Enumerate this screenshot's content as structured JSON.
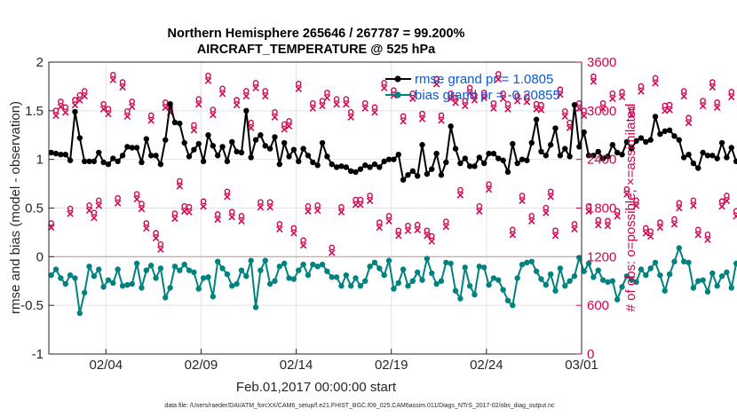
{
  "colors": {
    "rmse": "#000000",
    "bias": "#00827f",
    "obs": "#d4004f",
    "grid": "#e3e3e3",
    "zero": "#c8a0a0",
    "legend_text": "#0a59d6",
    "axis": "#262626"
  },
  "chart_data": {
    "type": "line",
    "title": [
      "Northern Hemisphere 265646 / 267787 = 99.200%",
      "AIRCRAFT_TEMPERATURE @ 525 hPa"
    ],
    "xlabel": "Feb.01,2017 00:00:00 start",
    "ylabel_left": "rmse and bias (model - observation)",
    "ylabel_right": "# of obs: o=possible; ×=assimilated",
    "x_range_days": [
      0,
      28
    ],
    "x_ticks": [
      {
        "day": 3,
        "label": "02/04"
      },
      {
        "day": 8,
        "label": "02/09"
      },
      {
        "day": 13,
        "label": "02/14"
      },
      {
        "day": 18,
        "label": "02/19"
      },
      {
        "day": 23,
        "label": "02/24"
      },
      {
        "day": 28,
        "label": "03/01"
      }
    ],
    "ylim_left": [
      -1,
      2
    ],
    "y_ticks_left": [
      {
        "v": 2,
        "label": "2"
      },
      {
        "v": 1.5,
        "label": "1.5"
      },
      {
        "v": 1,
        "label": "1"
      },
      {
        "v": 0.5,
        "label": "0.5"
      },
      {
        "v": 0,
        "label": "0"
      },
      {
        "v": -0.5,
        "label": "-0.5"
      },
      {
        "v": -1,
        "label": "-1"
      }
    ],
    "ylim_right": [
      0,
      3600
    ],
    "y_ticks_right": [
      {
        "v": 3600,
        "label": "3600"
      },
      {
        "v": 3000,
        "label": "3000"
      },
      {
        "v": 2400,
        "label": "2400"
      },
      {
        "v": 1800,
        "label": "1800"
      },
      {
        "v": 1200,
        "label": "1200"
      },
      {
        "v": 600,
        "label": "600"
      },
      {
        "v": 0,
        "label": "0"
      }
    ],
    "legend": [
      {
        "name": "rmse",
        "label": "rmse grand pr = 1.0805"
      },
      {
        "name": "bias",
        "label": "bias grand pr = -0.20855"
      }
    ],
    "time_step_days": 0.25,
    "series": [
      {
        "name": "rmse",
        "axis": "left",
        "values": [
          1.07,
          1.06,
          1.05,
          1.05,
          0.99,
          1.49,
          1.22,
          0.98,
          0.98,
          0.98,
          1.07,
          0.97,
          0.95,
          1.01,
          0.98,
          1.04,
          1.13,
          1.12,
          1.12,
          0.97,
          1.21,
          1.04,
          1.04,
          0.95,
          1.2,
          1.57,
          1.38,
          1.37,
          1.17,
          1.03,
          1.1,
          1.16,
          0.98,
          1.25,
          1.14,
          1.04,
          1.13,
          0.98,
          1.18,
          1.08,
          1.07,
          1.5,
          1.02,
          1.2,
          1.25,
          1.14,
          1.11,
          1.23,
          0.95,
          1.17,
          1.03,
          1.1,
          0.98,
          1.11,
          1.04,
          0.97,
          0.94,
          1.17,
          1.03,
          0.95,
          0.92,
          0.93,
          0.92,
          0.88,
          0.87,
          0.9,
          0.94,
          0.92,
          0.95,
          0.92,
          0.98,
          1.0,
          1.0,
          1.05,
          0.79,
          0.84,
          0.88,
          0.83,
          1.15,
          0.85,
          0.9,
          1.06,
          0.84,
          0.97,
          1.34,
          1.11,
          0.96,
          1.01,
          0.93,
          0.93,
          1.02,
          0.96,
          1.06,
          1.06,
          1.01,
          0.99,
          0.87,
          1.16,
          0.96,
          1.0,
          0.99,
          1.17,
          1.41,
          1.08,
          1.04,
          1.15,
          1.32,
          1.04,
          1.11,
          1.03,
          1.56,
          1.13,
          1.28,
          1.04,
          1.04,
          1.08,
          1.01,
          1.03,
          1.15,
          1.07,
          1.05,
          1.18,
          1.11,
          1.19,
          1.22,
          1.18,
          1.2,
          1.44,
          1.26,
          1.29,
          1.3,
          1.24,
          1.2,
          1.02,
          1.05,
          0.96,
          0.91,
          1.07,
          1.04,
          1.04,
          1.01,
          1.17,
          1.02,
          1.12,
          0.98,
          1.03,
          1.09,
          1.0,
          1.12,
          1.09,
          1.09,
          1.1,
          1.14,
          1.08,
          1.13,
          1.15,
          1.15,
          1.1
        ]
      },
      {
        "name": "bias",
        "axis": "left",
        "values": [
          -0.19,
          -0.13,
          -0.22,
          -0.28,
          -0.19,
          -0.22,
          -0.58,
          -0.37,
          -0.1,
          -0.2,
          -0.13,
          -0.31,
          -0.24,
          -0.27,
          -0.13,
          -0.3,
          -0.29,
          -0.28,
          -0.07,
          -0.32,
          -0.14,
          -0.09,
          -0.22,
          -0.12,
          -0.42,
          -0.32,
          -0.1,
          -0.14,
          -0.08,
          -0.14,
          -0.16,
          -0.33,
          -0.22,
          -0.21,
          -0.41,
          -0.05,
          -0.12,
          -0.18,
          -0.3,
          -0.28,
          -0.14,
          -0.2,
          -0.04,
          -0.52,
          -0.14,
          -0.04,
          -0.28,
          -0.25,
          -0.1,
          -0.07,
          -0.22,
          -0.23,
          -0.14,
          -0.08,
          -0.19,
          -0.08,
          -0.1,
          -0.08,
          -0.15,
          -0.21,
          -0.21,
          -0.3,
          -0.19,
          -0.3,
          -0.22,
          -0.3,
          -0.25,
          -0.1,
          -0.06,
          -0.12,
          -0.19,
          -0.04,
          -0.33,
          -0.27,
          -0.13,
          -0.3,
          -0.25,
          -0.16,
          -0.24,
          -0.02,
          -0.17,
          -0.28,
          -0.25,
          -0.06,
          -0.07,
          -0.35,
          -0.43,
          -0.11,
          -0.3,
          -0.39,
          -0.1,
          -0.11,
          -0.29,
          -0.22,
          -0.24,
          -0.34,
          -0.45,
          -0.5,
          -0.22,
          -0.08,
          -0.06,
          -0.05,
          -0.15,
          -0.23,
          -0.29,
          -0.18,
          -0.35,
          -0.12,
          -0.3,
          -0.25,
          -0.2,
          -0.01,
          -0.15,
          -0.07,
          -0.21,
          -0.14,
          -0.24,
          -0.26,
          -0.25,
          -0.44,
          -0.31,
          -0.2,
          -0.24,
          -0.26,
          -0.13,
          -0.19,
          -0.12,
          -0.06,
          -0.19,
          -0.35,
          -0.18,
          -0.05,
          0.09,
          -0.05,
          -0.06,
          -0.32,
          -0.25,
          -0.24,
          -0.36,
          -0.17,
          -0.3,
          -0.2,
          -0.16,
          -0.32,
          -0.07,
          -0.16,
          -0.24,
          -0.2,
          -0.31,
          -0.23,
          -0.26,
          -0.24,
          -0.24,
          -0.32,
          -0.31,
          -0.28
        ]
      },
      {
        "name": "obs_possible",
        "axis": "right",
        "values": [
          1570,
          2960,
          3070,
          3000,
          1750,
          3090,
          3150,
          3200,
          1790,
          1700,
          1850,
          3040,
          2980,
          3400,
          1880,
          3310,
          2950,
          3070,
          1930,
          1810,
          1570,
          2900,
          1450,
          1310,
          3060,
          3000,
          1690,
          2090,
          1780,
          1770,
          2780,
          3100,
          1840,
          3390,
          2970,
          1680,
          3230,
          1960,
          1710,
          3090,
          1660,
          3200,
          2810,
          3300,
          1830,
          3200,
          1830,
          2940,
          1560,
          2790,
          2830,
          1510,
          3290,
          1360,
          1780,
          3050,
          1790,
          3080,
          3180,
          1270,
          3100,
          1770,
          3100,
          2940,
          1860,
          1860,
          3050,
          1910,
          3000,
          1580,
          3300,
          1660,
          3210,
          1480,
          2890,
          1540,
          3170,
          1550,
          2920,
          1480,
          1410,
          3350,
          2900,
          1590,
          3170,
          3120,
          1980,
          3080,
          3240,
          3150,
          1780,
          3180,
          2050,
          3050,
          3410,
          3170,
          3040,
          1490,
          3140,
          1910,
          3130,
          1660,
          3040,
          3030,
          1760,
          1960,
          1480,
          3220,
          2950,
          2810,
          1560,
          3050,
          2960,
          1780,
          3380,
          1610,
          3050,
          1600,
          3170,
          1720,
          3190,
          1990,
          2970,
          1850,
          3260,
          1510,
          1470,
          3360,
          1580,
          3020,
          3030,
          1620,
          1820,
          3200,
          2870,
          1850,
          1490,
          3080,
          1430,
          3310,
          3060,
          1840,
          1910,
          3190,
          1720,
          3430,
          1560,
          3150,
          1480,
          3360,
          3180,
          1980,
          3130,
          1820,
          3070,
          1850,
          3130,
          1840
        ]
      },
      {
        "name": "obs_assimilated",
        "axis": "right",
        "values": [
          1570,
          2950,
          3060,
          2990,
          1740,
          3080,
          3140,
          3190,
          1780,
          1690,
          1840,
          3030,
          2970,
          3390,
          1870,
          3300,
          2940,
          3060,
          1920,
          1800,
          1560,
          2890,
          1440,
          1300,
          3050,
          2990,
          1680,
          2080,
          1770,
          1760,
          2770,
          3090,
          1830,
          3380,
          2960,
          1670,
          3220,
          1950,
          1700,
          3080,
          1650,
          3190,
          2800,
          3290,
          1820,
          3190,
          1820,
          2930,
          1550,
          2780,
          2820,
          1500,
          3280,
          1350,
          1770,
          3040,
          1780,
          3070,
          3170,
          1260,
          3090,
          1760,
          3090,
          2930,
          1850,
          1850,
          3040,
          1900,
          2990,
          1570,
          3290,
          1650,
          3200,
          1470,
          2880,
          1530,
          3160,
          1540,
          2910,
          1470,
          1400,
          3340,
          2890,
          1580,
          3160,
          3110,
          1970,
          3070,
          3230,
          3140,
          1770,
          3170,
          2040,
          3040,
          3400,
          3160,
          3030,
          1480,
          3130,
          1900,
          3120,
          1650,
          3030,
          3020,
          1750,
          1950,
          1470,
          3210,
          2940,
          2800,
          1550,
          3040,
          2950,
          1770,
          3370,
          1600,
          3040,
          1590,
          3160,
          1710,
          3180,
          1980,
          2960,
          1840,
          3250,
          1500,
          1460,
          3350,
          1570,
          3010,
          3020,
          1610,
          1810,
          3190,
          2860,
          1840,
          1480,
          3070,
          1420,
          3300,
          3050,
          1830,
          1900,
          3180,
          1710,
          3420,
          1550,
          3140,
          1470,
          3350,
          3170,
          1970,
          3120,
          1810,
          3060,
          1840,
          3120,
          1830
        ]
      }
    ],
    "grid": true,
    "legend_position": "top-right"
  },
  "footer": "data file: /Users/raeder/DAI/ATM_forcXX/CAM6_setup/f.e21.FHIST_BGC.f09_025.CAM6assim.011/Diags_NTrS_2017-02/obs_diag_output.nc"
}
